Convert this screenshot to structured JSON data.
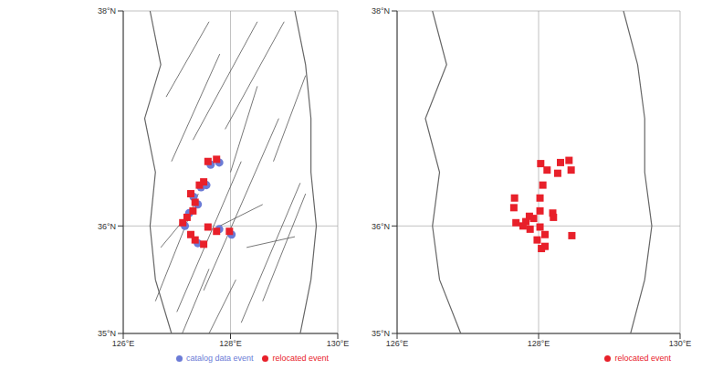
{
  "chart_data": [
    {
      "type": "scatter",
      "xlim": [
        126,
        130
      ],
      "ylim": [
        35,
        38
      ],
      "xticks": [
        {
          "value": 126,
          "label": "126°E"
        },
        {
          "value": 128,
          "label": "128°E"
        },
        {
          "value": 130,
          "label": "130°E"
        }
      ],
      "yticks": [
        {
          "value": 35,
          "label": "35°N"
        },
        {
          "value": 36,
          "label": "36°N"
        },
        {
          "value": 38,
          "label": "38°N"
        }
      ],
      "grid": true,
      "legend": "bottom",
      "coastline": {
        "x": [
          126.5,
          126.7,
          126.4,
          126.6,
          126.5,
          126.6,
          126.9
        ],
        "y": [
          38,
          37.5,
          37.0,
          36.5,
          36.0,
          35.5,
          35.0
        ]
      },
      "east_coastline": {
        "x": [
          129.2,
          129.4,
          129.5,
          129.5,
          129.6,
          129.5,
          129.3
        ],
        "y": [
          38,
          37.5,
          37.0,
          36.5,
          36.0,
          35.5,
          35.0
        ]
      },
      "faults": [
        {
          "x": [
            126.6,
            127.4
          ],
          "y": [
            35.3,
            36.3
          ]
        },
        {
          "x": [
            127.0,
            128.2
          ],
          "y": [
            35.2,
            36.6
          ]
        },
        {
          "x": [
            127.5,
            128.9
          ],
          "y": [
            35.4,
            37.0
          ]
        },
        {
          "x": [
            128.2,
            129.3
          ],
          "y": [
            35.1,
            36.4
          ]
        },
        {
          "x": [
            128.6,
            129.4
          ],
          "y": [
            35.3,
            36.3
          ]
        },
        {
          "x": [
            126.9,
            127.8
          ],
          "y": [
            36.6,
            37.6
          ]
        },
        {
          "x": [
            127.3,
            128.5
          ],
          "y": [
            36.8,
            37.9
          ]
        },
        {
          "x": [
            127.9,
            129.0
          ],
          "y": [
            36.9,
            37.9
          ]
        },
        {
          "x": [
            126.8,
            127.6
          ],
          "y": [
            37.2,
            37.9
          ]
        },
        {
          "x": [
            127.8,
            128.6
          ],
          "y": [
            36.0,
            36.2
          ]
        },
        {
          "x": [
            128.3,
            129.2
          ],
          "y": [
            35.8,
            35.9
          ]
        },
        {
          "x": [
            127.1,
            127.6
          ],
          "y": [
            35.0,
            35.6
          ]
        },
        {
          "x": [
            128.0,
            128.5
          ],
          "y": [
            36.5,
            37.3
          ]
        },
        {
          "x": [
            126.7,
            127.2
          ],
          "y": [
            35.8,
            36.1
          ]
        },
        {
          "x": [
            128.8,
            129.4
          ],
          "y": [
            36.6,
            37.4
          ]
        },
        {
          "x": [
            127.6,
            128.1
          ],
          "y": [
            35.0,
            35.5
          ]
        }
      ],
      "series": [
        {
          "name": "catalog data event",
          "color": "#6b7bd6",
          "marker": "circle",
          "x": [
            127.63,
            127.45,
            127.31,
            127.39,
            127.23,
            127.15,
            127.79,
            128.02,
            127.39,
            127.55,
            127.79
          ],
          "values": [
            36.57,
            36.36,
            36.27,
            36.2,
            36.12,
            36.0,
            35.97,
            35.92,
            35.84,
            36.38,
            36.59
          ]
        },
        {
          "name": "relocated event",
          "color": "#e8202a",
          "marker": "square",
          "x": [
            127.58,
            127.42,
            127.26,
            127.34,
            127.3,
            127.19,
            127.11,
            127.58,
            127.74,
            127.98,
            127.34,
            127.5,
            127.26,
            127.5,
            127.74
          ],
          "values": [
            36.6,
            36.38,
            36.3,
            36.22,
            36.14,
            36.08,
            36.03,
            35.99,
            35.95,
            35.95,
            35.87,
            35.83,
            35.92,
            36.41,
            36.62
          ]
        }
      ]
    },
    {
      "type": "scatter",
      "xlim": [
        126,
        130
      ],
      "ylim": [
        35,
        38
      ],
      "xticks": [
        {
          "value": 126,
          "label": "126°E"
        },
        {
          "value": 128,
          "label": "128°E"
        },
        {
          "value": 130,
          "label": "130°E"
        }
      ],
      "yticks": [
        {
          "value": 35,
          "label": "35°N"
        },
        {
          "value": 36,
          "label": "36°N"
        },
        {
          "value": 38,
          "label": "38°N"
        }
      ],
      "grid": true,
      "legend": "bottom",
      "coastline": {
        "x": [
          126.5,
          126.7,
          126.4,
          126.6,
          126.5,
          126.6,
          126.9
        ],
        "y": [
          38,
          37.5,
          37.0,
          36.5,
          36.0,
          35.5,
          35.0
        ]
      },
      "east_coastline": {
        "x": [
          129.2,
          129.4,
          129.5,
          129.5,
          129.6,
          129.5,
          129.3
        ],
        "y": [
          38,
          37.5,
          37.0,
          36.5,
          36.0,
          35.5,
          35.0
        ]
      },
      "faults": [],
      "series": [
        {
          "name": "relocated event",
          "color": "#e8202a",
          "marker": "square",
          "x": [
            128.03,
            128.12,
            128.31,
            128.43,
            128.46,
            128.27,
            128.06,
            128.02,
            127.66,
            127.65,
            128.02,
            128.2,
            128.21,
            127.87,
            127.93,
            127.82,
            127.78,
            127.68,
            127.88,
            128.02,
            128.09,
            127.98,
            128.04,
            128.09,
            128.47
          ],
          "values": [
            36.58,
            36.52,
            36.59,
            36.61,
            36.52,
            36.49,
            36.38,
            36.26,
            36.26,
            36.17,
            36.14,
            36.12,
            36.08,
            36.09,
            36.07,
            36.04,
            36.0,
            36.03,
            35.97,
            35.99,
            35.92,
            35.87,
            35.79,
            35.81,
            35.91
          ]
        }
      ]
    }
  ]
}
